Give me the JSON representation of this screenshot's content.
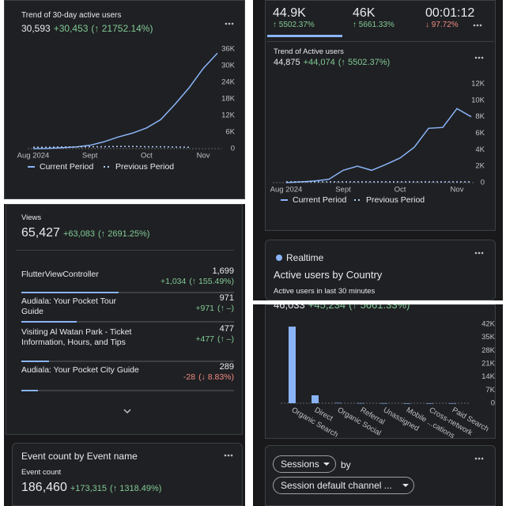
{
  "chart_data": [
    {
      "type": "line",
      "title": "Trend of 30-day active users",
      "headline": "30,593",
      "delta": "+30,453",
      "delta_pct": "(↑ 21752.14%)",
      "categories": [
        "Aug 2024",
        null,
        null,
        null,
        "Sept",
        null,
        null,
        null,
        "Oct",
        null,
        null,
        null,
        "Nov",
        null
      ],
      "series": [
        {
          "name": "Current Period",
          "color": "#8ab4f8",
          "style": "solid",
          "values": [
            0,
            100,
            300,
            600,
            1200,
            2500,
            4200,
            5600,
            7500,
            10500,
            16000,
            22000,
            29000,
            34500
          ]
        },
        {
          "name": "Previous Period",
          "color": "#aecbfa",
          "style": "dashed",
          "values": [
            500,
            500,
            600,
            600,
            700,
            700,
            800,
            800,
            700,
            700,
            600,
            500,
            null,
            null
          ]
        }
      ],
      "ylim": [
        0,
        36000
      ],
      "yticks": [
        0,
        {
          "value": 6000,
          "label": "6K"
        },
        {
          "value": 12000,
          "label": "12K"
        },
        {
          "value": 18000,
          "label": "18K"
        },
        {
          "value": 24000,
          "label": "24K"
        },
        {
          "value": 30000,
          "label": "30K"
        },
        {
          "value": 36000,
          "label": "36K"
        }
      ],
      "grid": false
    },
    {
      "type": "line",
      "title": "Trend of Active users",
      "headline": "44,875",
      "delta": "+44,074",
      "delta_pct": "(↑ 5502.37%)",
      "categories": [
        "Aug 2024",
        null,
        null,
        null,
        "Sept",
        null,
        null,
        null,
        "Oct",
        null,
        null,
        null,
        "Nov",
        null
      ],
      "series": [
        {
          "name": "Current Period",
          "color": "#8ab4f8",
          "style": "solid",
          "values": [
            0,
            100,
            200,
            400,
            1500,
            2000,
            1500,
            2200,
            3000,
            4300,
            6600,
            6700,
            9000,
            8000
          ]
        },
        {
          "name": "Previous Period",
          "color": "#aecbfa",
          "style": "dashed",
          "values": [
            100,
            100,
            100,
            100,
            100,
            100,
            100,
            100,
            100,
            100,
            100,
            100,
            100,
            100
          ]
        }
      ],
      "ylim": [
        0,
        12000
      ],
      "yticks": [
        0,
        {
          "value": 2000,
          "label": "2K"
        },
        {
          "value": 4000,
          "label": "4K"
        },
        {
          "value": 6000,
          "label": "6K"
        },
        {
          "value": 8000,
          "label": "8K"
        },
        {
          "value": 10000,
          "label": "10K"
        },
        {
          "value": 12000,
          "label": "12K"
        }
      ],
      "grid": false
    },
    {
      "type": "bar",
      "headline": "46,033",
      "delta": "+45,234",
      "delta_pct": "(↑ 5661.33%)",
      "categories": [
        "Organic Search",
        "Direct",
        "Organic Social",
        "Referral",
        "Unassigned",
        "Mobile ...cations",
        "Cross-network",
        "Paid Search"
      ],
      "values": [
        40700,
        4200,
        200,
        100,
        50,
        0,
        0,
        0
      ],
      "color": "#8ab4f8",
      "ylim": [
        0,
        42000
      ],
      "yticks": [
        0,
        {
          "value": 7000,
          "label": "7K"
        },
        {
          "value": 14000,
          "label": "14K"
        },
        {
          "value": 21000,
          "label": "21K"
        },
        {
          "value": 28000,
          "label": "28K"
        },
        {
          "value": 35000,
          "label": "35K"
        },
        {
          "value": 42000,
          "label": "42K"
        }
      ],
      "grid": false
    }
  ],
  "metrics": [
    {
      "value": "44.9K",
      "change": "↑ 5502.37%"
    },
    {
      "value": "46K",
      "change": "↑ 5661.33%"
    },
    {
      "value": "00:01:12",
      "change": "↓ 97.72%"
    }
  ],
  "views_card": {
    "metric": "Views",
    "value": "65,427",
    "delta": "+63,083",
    "delta_pct": "(↑ 2691.25%)",
    "rows": [
      {
        "title": "FlutterViewController",
        "views": 1699,
        "views_label": "1,699",
        "delta": "+1,034",
        "delta_pct": "(↑ 155.49%)"
      },
      {
        "title": "Audiala: Your Pocket Tour Guide",
        "views": 971,
        "views_label": "971",
        "delta": "+971",
        "delta_pct": "(↑ –)"
      },
      {
        "title": "Visiting Al Watan Park - Ticket Information, Hours, and Tips",
        "views": 477,
        "views_label": "477",
        "delta": "+477",
        "delta_pct": "(↑ –)"
      },
      {
        "title": "Audiala: Your Pocket City Guide",
        "views": 289,
        "views_label": "289",
        "delta": "-28",
        "delta_pct": "(↓ 8.83%)"
      }
    ]
  },
  "realtime": {
    "label": "Realtime",
    "title": "Active users by Country",
    "subtitle": "Active users in last 30 minutes"
  },
  "event_card": {
    "title": "Event count by Event name",
    "metric": "Event count",
    "value": "186,460",
    "delta": "+173,315",
    "delta_pct": "(↑ 1318.49%)"
  },
  "sessions": {
    "metric": "Sessions",
    "by": "by",
    "dimension": "Session default channel ..."
  }
}
